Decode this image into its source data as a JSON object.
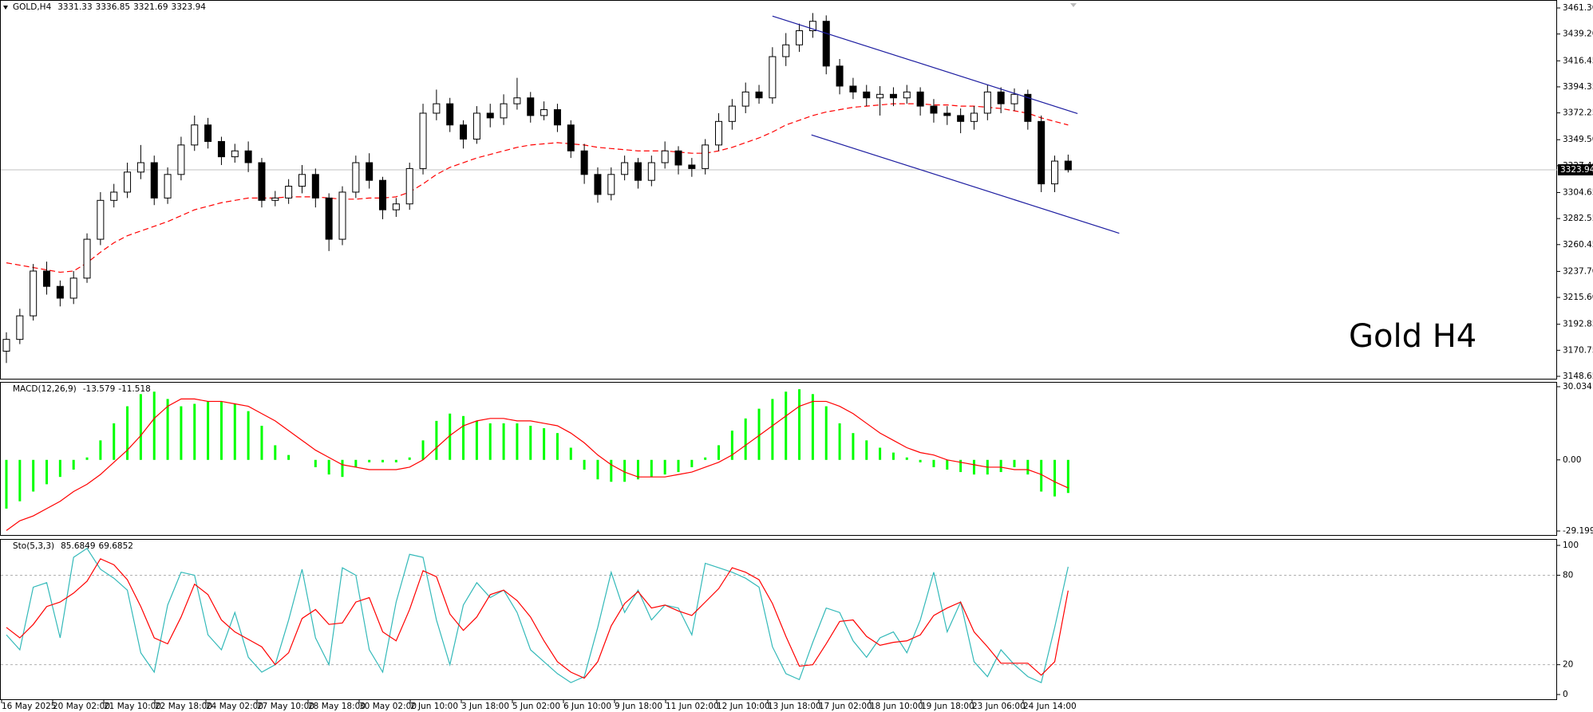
{
  "chart_data": [
    {
      "type": "candlestick",
      "symbol": "GOLD,H4",
      "annotation": "Gold H4",
      "ylim": [
        3145.94,
        3468.07
      ],
      "yticks": [
        {
          "value": 3461.3,
          "label": "3461.30"
        },
        {
          "value": 3439.2,
          "label": "3439.20"
        },
        {
          "value": 3416.45,
          "label": "3416.45"
        },
        {
          "value": 3394.35,
          "label": "3394.35"
        },
        {
          "value": 3372.25,
          "label": "3372.25"
        },
        {
          "value": 3349.5,
          "label": "3349.50"
        },
        {
          "value": 3327.4,
          "label": "3327.40"
        },
        {
          "value": 3304.65,
          "label": "3304.65"
        },
        {
          "value": 3282.55,
          "label": "3282.55"
        },
        {
          "value": 3260.45,
          "label": "3260.45"
        },
        {
          "value": 3237.7,
          "label": "3237.70"
        },
        {
          "value": 3215.6,
          "label": "3215.60"
        },
        {
          "value": 3192.85,
          "label": "3192.85"
        },
        {
          "value": 3170.75,
          "label": "3170.75"
        },
        {
          "value": 3148.65,
          "label": "3148.65"
        }
      ],
      "candles": {
        "open": [
          3170,
          3180,
          3200,
          3238,
          3225,
          3215,
          3232,
          3265,
          3298,
          3305,
          3322,
          3330,
          3300,
          3320,
          3345,
          3362,
          3348,
          3335,
          3340,
          3330,
          3298,
          3300,
          3310,
          3320,
          3300,
          3265,
          3305,
          3330,
          3315,
          3290,
          3295,
          3325,
          3372,
          3380,
          3362,
          3350,
          3372,
          3368,
          3380,
          3385,
          3370,
          3375,
          3362,
          3340,
          3320,
          3303,
          3320,
          3330,
          3315,
          3330,
          3340,
          3328,
          3325,
          3345,
          3365,
          3378,
          3390,
          3385,
          3420,
          3430,
          3442,
          3450,
          3412,
          3395,
          3390,
          3385,
          3388,
          3385,
          3390,
          3378,
          3372,
          3370,
          3365,
          3372,
          3390,
          3380,
          3388,
          3365,
          3312,
          3331.33
        ],
        "high": [
          3186,
          3206,
          3244,
          3246,
          3230,
          3238,
          3270,
          3305,
          3312,
          3330,
          3345,
          3336,
          3326,
          3352,
          3370,
          3368,
          3352,
          3346,
          3348,
          3334,
          3306,
          3316,
          3328,
          3325,
          3304,
          3310,
          3336,
          3338,
          3318,
          3300,
          3330,
          3380,
          3392,
          3385,
          3366,
          3378,
          3380,
          3388,
          3402,
          3390,
          3382,
          3380,
          3366,
          3346,
          3326,
          3326,
          3336,
          3334,
          3336,
          3348,
          3344,
          3334,
          3350,
          3372,
          3384,
          3398,
          3396,
          3428,
          3440,
          3448,
          3457,
          3455,
          3418,
          3402,
          3396,
          3395,
          3394,
          3396,
          3394,
          3384,
          3378,
          3376,
          3378,
          3396,
          3394,
          3393,
          3392,
          3370,
          3336,
          3336.85
        ],
        "low": [
          3160,
          3176,
          3196,
          3218,
          3208,
          3210,
          3228,
          3260,
          3292,
          3300,
          3316,
          3294,
          3295,
          3315,
          3340,
          3342,
          3328,
          3330,
          3322,
          3292,
          3293,
          3295,
          3304,
          3292,
          3255,
          3260,
          3300,
          3308,
          3282,
          3284,
          3290,
          3320,
          3366,
          3356,
          3342,
          3346,
          3360,
          3362,
          3375,
          3364,
          3366,
          3356,
          3334,
          3312,
          3296,
          3298,
          3315,
          3308,
          3310,
          3325,
          3320,
          3318,
          3320,
          3340,
          3358,
          3372,
          3380,
          3380,
          3412,
          3424,
          3436,
          3405,
          3388,
          3384,
          3378,
          3370,
          3378,
          3380,
          3370,
          3364,
          3362,
          3355,
          3358,
          3366,
          3372,
          3374,
          3358,
          3305,
          3305,
          3321.69
        ],
        "close": [
          3180,
          3200,
          3238,
          3225,
          3215,
          3232,
          3265,
          3298,
          3305,
          3322,
          3330,
          3300,
          3320,
          3345,
          3362,
          3348,
          3335,
          3340,
          3330,
          3298,
          3300,
          3310,
          3320,
          3300,
          3265,
          3305,
          3330,
          3315,
          3290,
          3295,
          3325,
          3372,
          3380,
          3362,
          3350,
          3372,
          3368,
          3380,
          3385,
          3370,
          3375,
          3362,
          3340,
          3320,
          3303,
          3320,
          3330,
          3315,
          3330,
          3340,
          3328,
          3325,
          3345,
          3365,
          3378,
          3390,
          3385,
          3420,
          3430,
          3442,
          3450,
          3412,
          3395,
          3390,
          3385,
          3388,
          3385,
          3390,
          3378,
          3372,
          3370,
          3365,
          3372,
          3390,
          3380,
          3388,
          3365,
          3312,
          3331.33,
          3323.94
        ]
      },
      "moving_average": {
        "color": "#ff0000",
        "values": [
          3245,
          3243,
          3241,
          3239,
          3237,
          3238,
          3245,
          3254,
          3262,
          3268,
          3272,
          3276,
          3280,
          3285,
          3290,
          3293,
          3296,
          3298,
          3300,
          3300,
          3300,
          3301,
          3301,
          3301,
          3300,
          3299,
          3299,
          3300,
          3300,
          3301,
          3305,
          3312,
          3320,
          3326,
          3330,
          3334,
          3337,
          3340,
          3343,
          3345,
          3346,
          3347,
          3346,
          3345,
          3343,
          3342,
          3341,
          3340,
          3340,
          3340,
          3339,
          3338,
          3338,
          3340,
          3343,
          3347,
          3351,
          3356,
          3362,
          3366,
          3370,
          3373,
          3375,
          3377,
          3378,
          3379,
          3380,
          3380,
          3380,
          3379,
          3379,
          3378,
          3378,
          3377,
          3376,
          3374,
          3372,
          3368,
          3365,
          3362
        ]
      },
      "channels": [
        {
          "color": "#1c1ca0",
          "x": [
            57,
            79.7
          ],
          "y": [
            3454.4,
            3371.7
          ]
        },
        {
          "color": "#1c1ca0",
          "x": [
            59.9,
            82.8
          ],
          "y": [
            3353.6,
            3270.1
          ]
        }
      ]
    },
    {
      "type": "bar",
      "title": "MACD(12,26,9)",
      "ylim": [
        -31.16,
        32.0
      ],
      "yticks": [
        30.034,
        {
          "value": 0,
          "label": "0.00"
        },
        -29.199
      ],
      "series": [
        {
          "color": "#00ff00",
          "values": [
            -20,
            -17,
            -13,
            -10,
            -7,
            -4,
            1,
            8,
            15,
            22,
            27,
            28,
            25,
            22,
            23,
            24,
            24,
            23,
            20,
            14,
            6,
            2,
            0,
            -3,
            -6,
            -7,
            -3,
            -1,
            -1,
            -1,
            1,
            8,
            16,
            19,
            18,
            16,
            15,
            15,
            15,
            14,
            13,
            11,
            5,
            -4,
            -8,
            -9,
            -9,
            -8,
            -7,
            -6,
            -5,
            -3,
            1,
            6,
            12,
            17,
            21,
            25,
            28,
            29,
            27,
            22,
            15,
            11,
            8,
            5,
            3,
            1,
            -1,
            -3,
            -4,
            -5,
            -6,
            -6,
            -5,
            -3,
            -6,
            -13,
            -15,
            -13.579
          ]
        },
        {
          "color": "#ff0000",
          "values": [
            -29,
            -25,
            -23,
            -20,
            -17,
            -13,
            -10,
            -6,
            -1,
            4,
            10,
            17,
            22,
            25,
            25,
            24,
            24,
            23,
            22,
            19,
            16,
            12,
            8,
            4,
            1,
            -2,
            -3,
            -4,
            -4,
            -4,
            -3,
            0,
            5,
            10,
            14,
            16,
            17,
            17,
            16,
            16,
            15,
            14,
            11,
            7,
            2,
            -2,
            -5,
            -7,
            -7,
            -7,
            -6,
            -5,
            -3,
            -1,
            2,
            6,
            10,
            14,
            18,
            22,
            24,
            24,
            22,
            19,
            15,
            11,
            8,
            5,
            3,
            2,
            0,
            -1,
            -2,
            -3,
            -3,
            -4,
            -4,
            -6,
            -9,
            -11.518
          ]
        }
      ]
    },
    {
      "type": "line",
      "title": "Sto(5,3,3)",
      "ylim": [
        -3.7,
        104.3
      ],
      "yticks": [
        100,
        80,
        20,
        0
      ],
      "levels": [
        80,
        20
      ],
      "series": [
        {
          "color": "#33b9b9",
          "values": [
            40,
            30,
            72,
            75,
            38,
            92,
            98,
            84,
            78,
            70,
            28,
            15,
            60,
            82,
            80,
            40,
            30,
            55,
            25,
            15,
            20,
            50,
            84,
            38,
            20,
            85,
            80,
            30,
            15,
            62,
            94,
            92,
            50,
            20,
            60,
            75,
            65,
            70,
            55,
            30,
            22,
            14,
            8,
            12,
            45,
            82,
            55,
            70,
            50,
            60,
            58,
            40,
            88,
            85,
            82,
            78,
            72,
            32,
            14,
            10,
            35,
            58,
            55,
            36,
            25,
            38,
            42,
            28,
            50,
            82,
            42,
            62,
            22,
            12,
            30,
            20,
            12,
            8,
            45,
            85.6849
          ]
        },
        {
          "color": "#ff0000",
          "values": [
            45,
            38,
            47,
            59,
            62,
            68,
            76,
            91,
            87,
            77,
            59,
            38,
            34,
            52,
            74,
            67,
            50,
            42,
            37,
            32,
            20,
            28,
            51,
            57,
            47,
            48,
            62,
            65,
            42,
            36,
            57,
            83,
            79,
            54,
            43,
            52,
            67,
            70,
            63,
            52,
            36,
            22,
            15,
            11,
            22,
            46,
            61,
            69,
            58,
            60,
            56,
            53,
            62,
            71,
            85,
            82,
            77,
            61,
            39,
            19,
            20,
            34,
            49,
            50,
            39,
            33,
            35,
            36,
            40,
            53,
            58,
            62,
            42,
            32,
            21,
            21,
            21,
            13,
            22,
            69.6852
          ]
        }
      ],
      "xtick_labels": [
        "16 May 2025",
        "20 May 02:00",
        "21 May 10:00",
        "22 May 18:00",
        "24 May 02:00",
        "27 May 10:00",
        "28 May 18:00",
        "30 May 02:00",
        "2 Jun 10:00",
        "3 Jun 18:00",
        "5 Jun 02:00",
        "6 Jun 10:00",
        "9 Jun 18:00",
        "11 Jun 02:00",
        "12 Jun 10:00",
        "13 Jun 18:00",
        "17 Jun 02:00",
        "18 Jun 10:00",
        "19 Jun 18:00",
        "23 Jun 06:00",
        "24 Jun 14:00"
      ]
    }
  ]
}
